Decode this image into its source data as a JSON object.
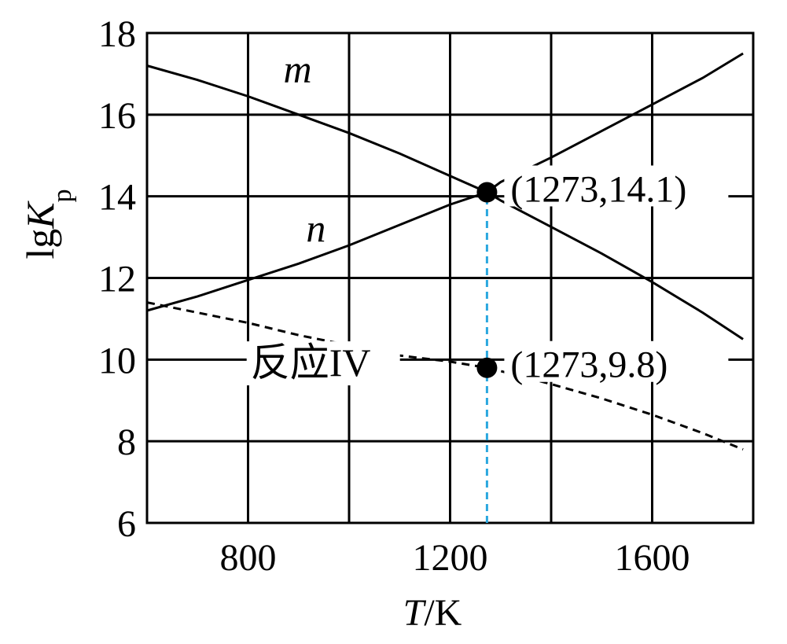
{
  "chart_data": {
    "type": "line",
    "title": "",
    "xlabel_italic": "T",
    "xlabel_rest": "/K",
    "ylabel_main": "lgK",
    "ylabel_sub": "p",
    "xlim": [
      600,
      1800
    ],
    "ylim": [
      6,
      18
    ],
    "x_ticks": [
      800,
      1200,
      1600
    ],
    "x_tick_labels": [
      "800",
      "1200",
      "1600"
    ],
    "x_grid": [
      800,
      1000,
      1200,
      1400,
      1600
    ],
    "y_ticks": [
      6,
      8,
      10,
      12,
      14,
      16,
      18
    ],
    "y_tick_labels": [
      "6",
      "8",
      "10",
      "12",
      "14",
      "16",
      "18"
    ],
    "grid": true,
    "series": [
      {
        "name": "m",
        "style": "solid",
        "x": [
          600,
          700,
          800,
          900,
          1000,
          1100,
          1200,
          1273,
          1300,
          1400,
          1500,
          1600,
          1700,
          1780
        ],
        "y": [
          17.2,
          16.85,
          16.45,
          16.0,
          15.55,
          15.05,
          14.5,
          14.1,
          13.9,
          13.25,
          12.6,
          11.9,
          11.15,
          10.5
        ]
      },
      {
        "name": "n",
        "style": "solid",
        "x": [
          600,
          700,
          800,
          900,
          1000,
          1100,
          1200,
          1273,
          1300,
          1400,
          1500,
          1600,
          1700,
          1780
        ],
        "y": [
          11.2,
          11.55,
          11.95,
          12.35,
          12.8,
          13.3,
          13.8,
          14.1,
          14.35,
          14.95,
          15.6,
          16.25,
          16.9,
          17.5
        ]
      },
      {
        "name": "反应IV",
        "style": "dashed",
        "x": [
          600,
          700,
          800,
          900,
          1000,
          1100,
          1200,
          1273,
          1300,
          1400,
          1500,
          1600,
          1700,
          1780
        ],
        "y": [
          11.4,
          11.15,
          10.9,
          10.6,
          10.35,
          10.1,
          9.95,
          9.8,
          9.72,
          9.4,
          9.05,
          8.65,
          8.2,
          7.8
        ]
      }
    ],
    "reference_line": {
      "x": 1273,
      "y_from": 6,
      "y_to": 14.1,
      "color": "#2aa7df",
      "style": "dashed"
    },
    "points": [
      {
        "x": 1273,
        "y": 14.1,
        "label": "(1273,14.1)"
      },
      {
        "x": 1273,
        "y": 9.8,
        "label": "(1273,9.8)"
      }
    ],
    "curve_labels": [
      {
        "text": "m",
        "italic": true,
        "x": 870,
        "y": 16.8
      },
      {
        "text": "n",
        "italic": true,
        "x": 915,
        "y": 12.9
      },
      {
        "text": "反应IV",
        "italic": false,
        "x": 805,
        "y": 9.6
      }
    ]
  }
}
